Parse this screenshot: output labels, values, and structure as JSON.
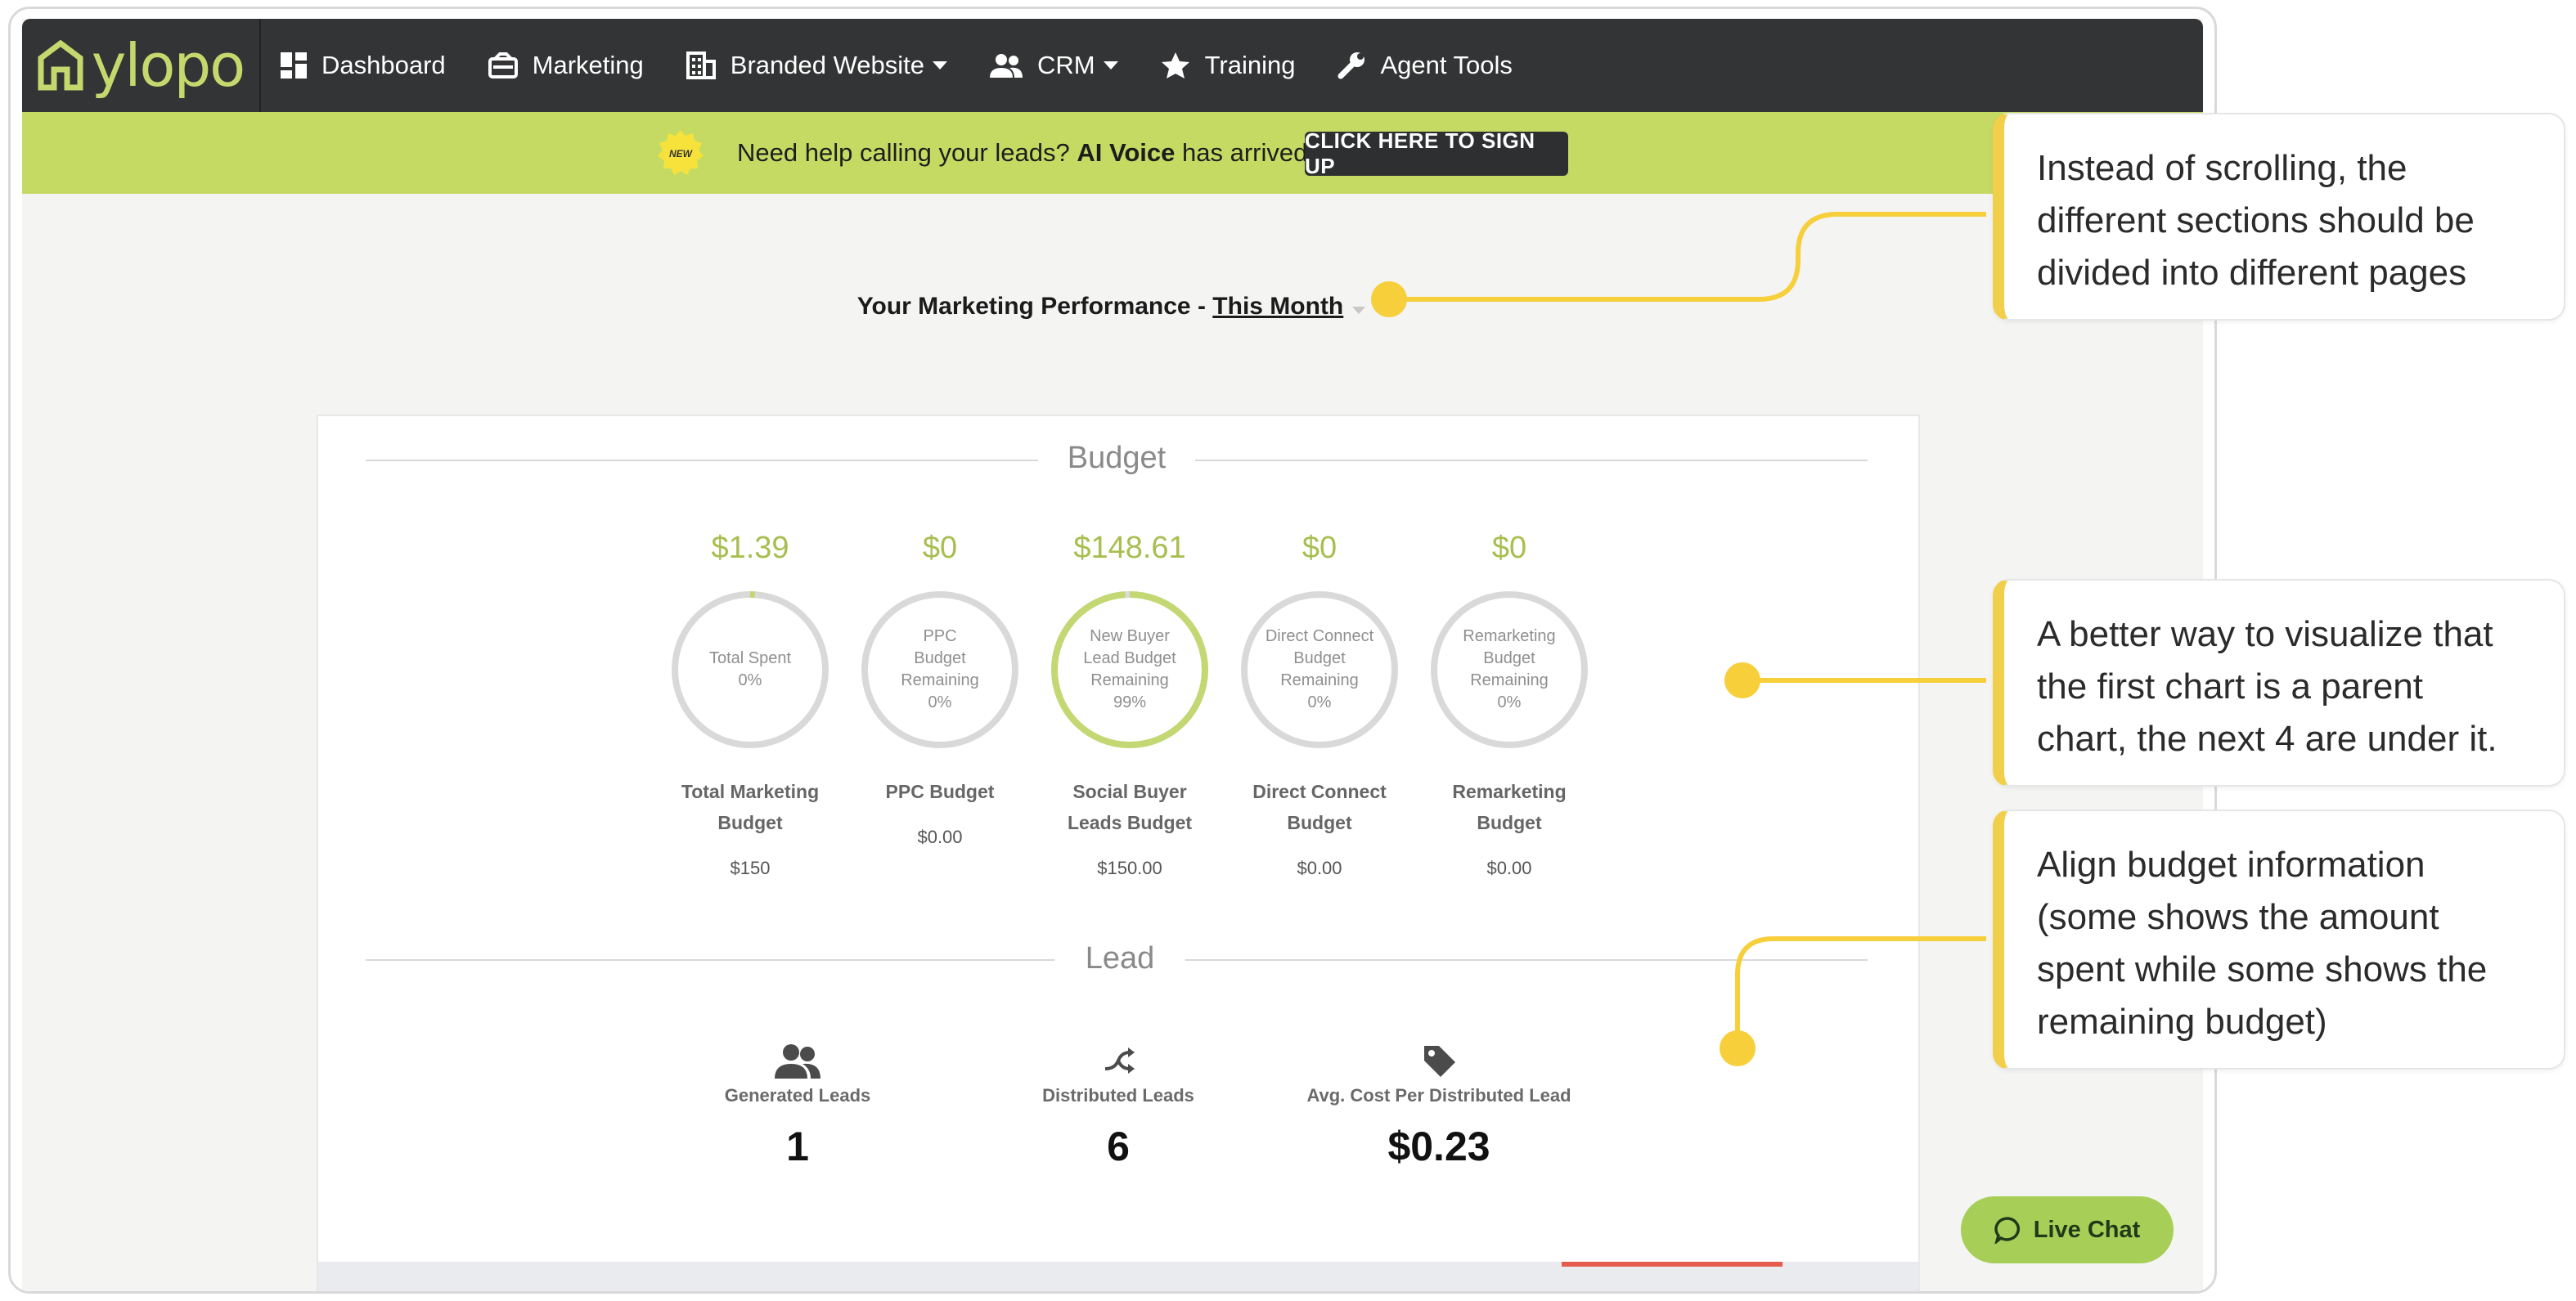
{
  "app": {
    "logo_text": "ylopo",
    "nav": [
      {
        "label": "Dashboard",
        "icon": "dashboard-icon"
      },
      {
        "label": "Marketing",
        "icon": "megaphone-icon"
      },
      {
        "label": "Branded Website",
        "icon": "building-icon",
        "dropdown": true
      },
      {
        "label": "CRM",
        "icon": "people-icon",
        "dropdown": true
      },
      {
        "label": "Training",
        "icon": "star-icon"
      },
      {
        "label": "Agent Tools",
        "icon": "wrench-icon"
      }
    ],
    "promo": {
      "badge": "NEW",
      "text_prefix": "Need help calling your leads?",
      "text_bold": "AI Voice",
      "text_suffix": "has arrived!",
      "button": "CLICK HERE TO SIGN UP"
    },
    "performance": {
      "heading": "Your Marketing Performance -",
      "period": "This Month"
    },
    "budget": {
      "section_title": "Budget",
      "items": [
        {
          "amount": "$1.39",
          "ring_lines": [
            "Total Spent",
            "0%"
          ],
          "percent": 0.01,
          "label_lines": [
            "Total Marketing",
            "Budget"
          ],
          "sub": "$150"
        },
        {
          "amount": "$0",
          "ring_lines": [
            "PPC",
            "Budget",
            "Remaining",
            "0%"
          ],
          "percent": 0,
          "label_lines": [
            "PPC Budget"
          ],
          "sub": "$0.00"
        },
        {
          "amount": "$148.61",
          "ring_lines": [
            "New Buyer",
            "Lead Budget",
            "Remaining",
            "99%"
          ],
          "percent": 0.99,
          "label_lines": [
            "Social Buyer",
            "Leads Budget"
          ],
          "sub": "$150.00"
        },
        {
          "amount": "$0",
          "ring_lines": [
            "Direct Connect",
            "Budget",
            "Remaining",
            "0%"
          ],
          "percent": 0,
          "label_lines": [
            "Direct Connect",
            "Budget"
          ],
          "sub": "$0.00"
        },
        {
          "amount": "$0",
          "ring_lines": [
            "Remarketing",
            "Budget",
            "Remaining",
            "0%"
          ],
          "percent": 0,
          "label_lines": [
            "Remarketing",
            "Budget"
          ],
          "sub": "$0.00"
        }
      ]
    },
    "lead": {
      "section_title": "Lead",
      "metrics": [
        {
          "label": "Generated Leads",
          "value": "1",
          "icon": "users-icon"
        },
        {
          "label": "Distributed Leads",
          "value": "6",
          "icon": "shuffle-icon"
        },
        {
          "label": "Avg. Cost Per Distributed Lead",
          "value": "$0.23",
          "icon": "price-tag-icon"
        }
      ]
    },
    "live_chat": "Live Chat"
  },
  "annotations": [
    {
      "lines": [
        "Instead of scrolling, the",
        "different sections should be",
        "divided into different pages"
      ]
    },
    {
      "lines": [
        "A better way to visualize that",
        "the first chart is a parent",
        "chart, the next 4 are under it."
      ]
    },
    {
      "lines": [
        "Align budget information",
        "(some shows the amount",
        "spent while some shows the",
        "remaining budget)"
      ]
    }
  ],
  "colors": {
    "navbar": "#333435",
    "accent_green": "#c5da63",
    "budget_green": "#a8be4f",
    "annotation_yellow": "#f2cf4a"
  }
}
